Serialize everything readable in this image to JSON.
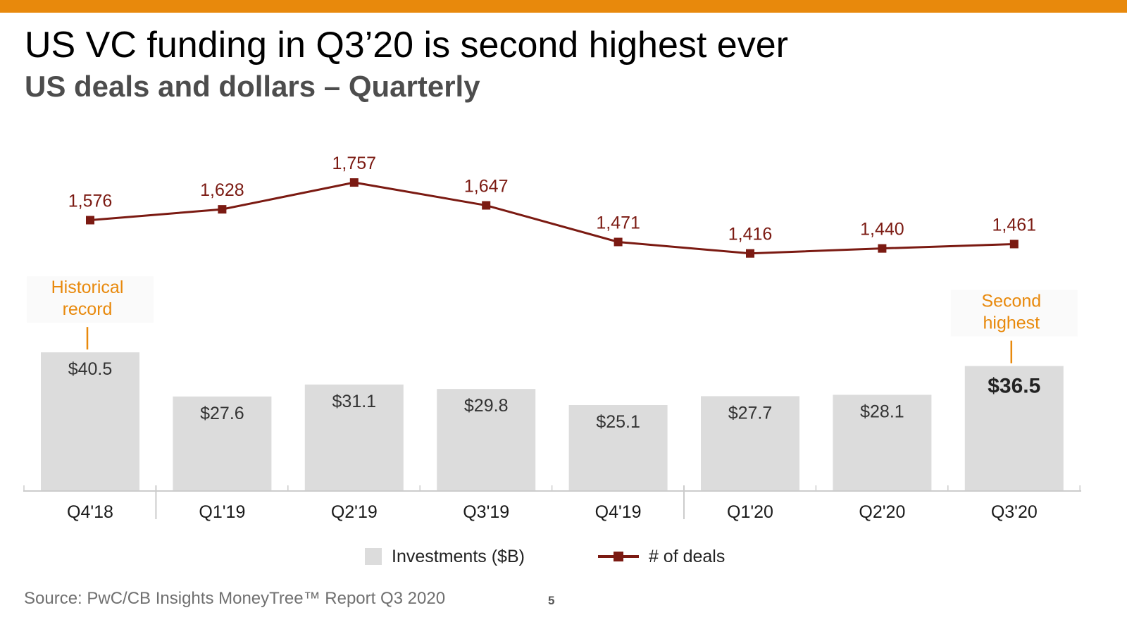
{
  "header": {
    "title": "US VC funding in Q3’20 is second highest ever",
    "subtitle": "US deals and dollars – Quarterly"
  },
  "colors": {
    "accent": "#e8890c",
    "bar": "#dcdcdc",
    "line": "#7b1a12",
    "annotation": "#e8890c",
    "axis": "#cccccc"
  },
  "chart_data": {
    "type": "bar",
    "categories": [
      "Q4'18",
      "Q1'19",
      "Q2'19",
      "Q3'19",
      "Q4'19",
      "Q1'20",
      "Q2'20",
      "Q3'20"
    ],
    "series": [
      {
        "name": "Investments ($B)",
        "type": "bar",
        "values": [
          40.5,
          27.6,
          31.1,
          29.8,
          25.1,
          27.7,
          28.1,
          36.5
        ],
        "labels": [
          "$40.5",
          "$27.6",
          "$31.1",
          "$29.8",
          "$25.1",
          "$27.7",
          "$28.1",
          "$36.5"
        ]
      },
      {
        "name": "# of deals",
        "type": "line",
        "values": [
          1576,
          1628,
          1757,
          1647,
          1471,
          1416,
          1440,
          1461
        ],
        "labels": [
          "1,576",
          "1,628",
          "1,757",
          "1,647",
          "1,471",
          "1,416",
          "1,440",
          "1,461"
        ]
      }
    ],
    "annotations": [
      {
        "category": "Q4'18",
        "lines": [
          "Historical",
          "record"
        ]
      },
      {
        "category": "Q3'20",
        "lines": [
          "Second",
          "highest"
        ]
      }
    ],
    "highlight_category": "Q3'20",
    "legend": {
      "position": "bottom-center"
    }
  },
  "legend": {
    "bar_label": "Investments ($B)",
    "line_label": "# of deals"
  },
  "footer": {
    "source": "Source: PwC/CB Insights MoneyTree™ Report Q3 2020",
    "page_number": "5"
  }
}
